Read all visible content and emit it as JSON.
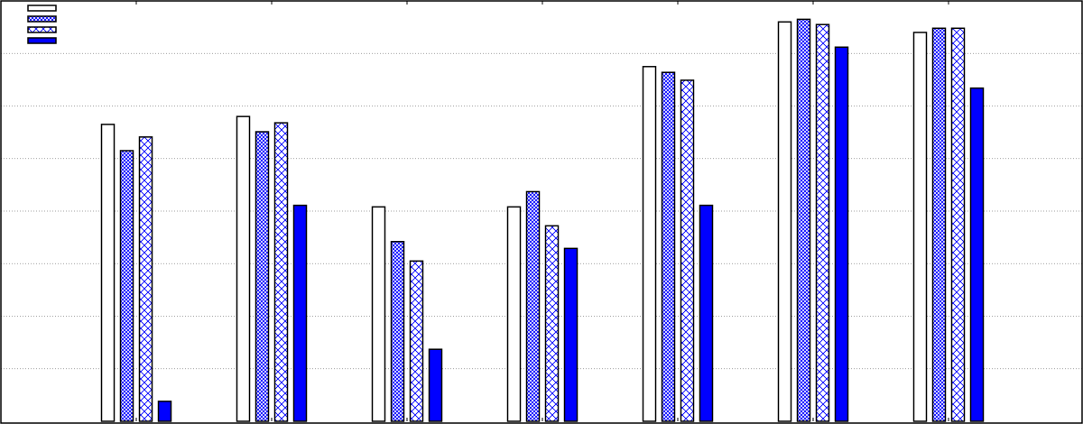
{
  "chart_data": {
    "type": "bar",
    "categories": [
      null,
      null,
      null,
      null,
      null,
      null,
      null
    ],
    "series": [
      {
        "color": "#ffffff",
        "hatch": null,
        "values": [
          5.65,
          5.8,
          4.08,
          4.08,
          6.75,
          7.6,
          7.4
        ]
      },
      {
        "color": "#0000ff",
        "hatch": "xxxx",
        "values": [
          5.15,
          5.51,
          3.42,
          4.37,
          6.64,
          7.65,
          7.48
        ]
      },
      {
        "color": "#0000ff",
        "hatch": "xx",
        "values": [
          5.41,
          5.68,
          3.05,
          3.72,
          6.49,
          7.55,
          7.48
        ]
      },
      {
        "color": "#0000ff",
        "hatch": null,
        "values": [
          0.38,
          4.11,
          1.37,
          3.29,
          4.11,
          7.12,
          6.34
        ]
      }
    ],
    "ylim": [
      0,
      8
    ],
    "yticks": [
      1,
      2,
      3,
      4,
      5,
      6,
      7
    ],
    "grid": true,
    "legend": "upper left"
  }
}
